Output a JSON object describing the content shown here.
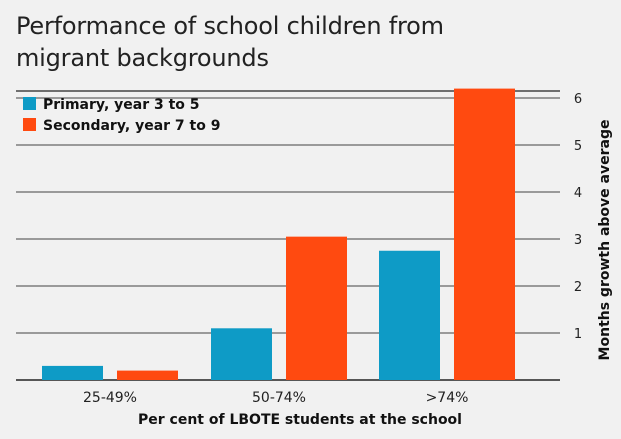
{
  "chart_data": {
    "type": "bar",
    "title": "Performance of school children from migrant backgrounds",
    "xlabel": "Per cent of LBOTE students at the school",
    "ylabel": "Months growth above average",
    "categories": [
      "25-49%",
      "50-74%",
      ">74%"
    ],
    "series": [
      {
        "name": "Primary, year 3 to 5",
        "color": "#0e9bc6",
        "values": [
          0.3,
          1.1,
          2.75
        ]
      },
      {
        "name": "Secondary, year 7 to 9",
        "color": "#ff4a10",
        "values": [
          0.2,
          3.05,
          6.2
        ]
      }
    ],
    "yticks": [
      1,
      2,
      3,
      4,
      5,
      6
    ],
    "ylim": [
      0,
      6.2
    ],
    "y_axis_position": "right",
    "grid": true,
    "legend_position": "top-left"
  }
}
